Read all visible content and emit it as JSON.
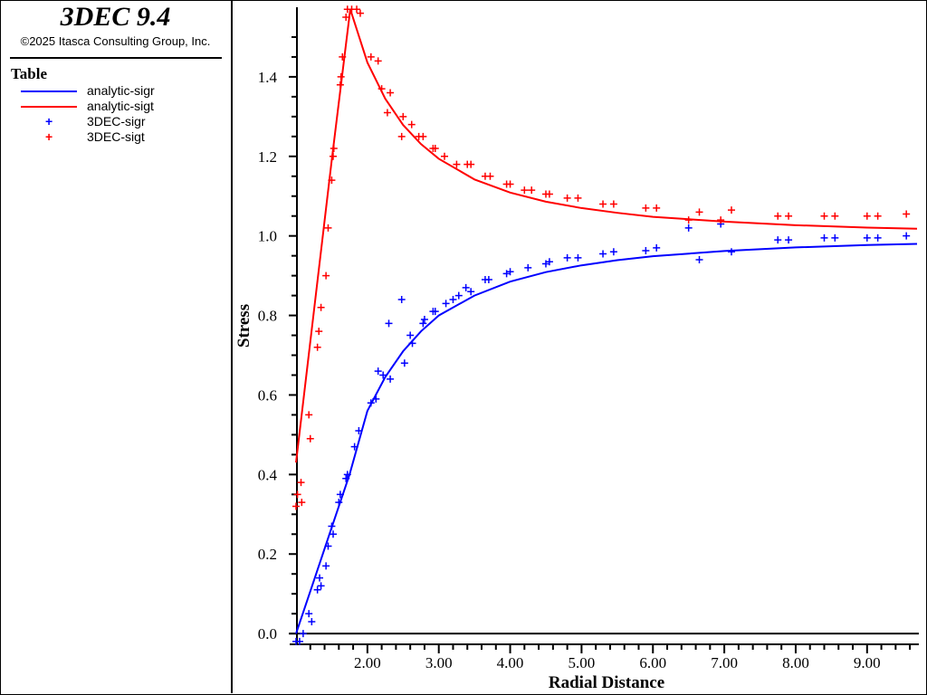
{
  "header": {
    "title": "3DEC 9.4",
    "copyright": "©2025 Itasca Consulting Group, Inc."
  },
  "legend": {
    "title": "Table",
    "entries": [
      {
        "label": "analytic-sigr",
        "kind": "line",
        "color": "#0000ff"
      },
      {
        "label": "analytic-sigt",
        "kind": "line",
        "color": "#ff0000"
      },
      {
        "label": "3DEC-sigr",
        "kind": "marker",
        "color": "#0000ff"
      },
      {
        "label": "3DEC-sigt",
        "kind": "marker",
        "color": "#ff0000"
      }
    ]
  },
  "chart_data": {
    "type": "line",
    "xlabel": "Radial Distance",
    "ylabel": "Stress",
    "xlim": [
      1.0,
      9.7
    ],
    "ylim": [
      -0.027,
      1.575
    ],
    "xticks": [
      "2.00",
      "3.00",
      "4.00",
      "5.00",
      "6.00",
      "7.00",
      "8.00",
      "9.00"
    ],
    "yticks": [
      "0.0",
      "0.2",
      "0.4",
      "0.6",
      "0.8",
      "1.0",
      "1.2",
      "1.4"
    ],
    "grid": false,
    "legend_placement": "left panel",
    "series": [
      {
        "name": "analytic-sigr",
        "style": "line",
        "color": "#0000ff",
        "x": [
          1,
          1.25,
          1.5,
          1.75,
          2,
          2.25,
          2.5,
          2.75,
          3,
          3.5,
          4,
          4.5,
          5,
          5.5,
          6,
          7,
          8,
          9,
          9.7
        ],
        "y": [
          0,
          0.133,
          0.267,
          0.4,
          0.56,
          0.645,
          0.71,
          0.76,
          0.8,
          0.85,
          0.885,
          0.909,
          0.926,
          0.939,
          0.949,
          0.962,
          0.971,
          0.977,
          0.98
        ]
      },
      {
        "name": "analytic-sigt",
        "style": "line",
        "color": "#ff0000",
        "x": [
          1,
          1.25,
          1.5,
          1.76,
          2,
          2.25,
          2.5,
          2.75,
          3,
          3.5,
          4,
          4.5,
          5,
          5.5,
          6,
          7,
          8,
          9,
          9.7
        ],
        "y": [
          0.43,
          0.81,
          1.19,
          1.57,
          1.436,
          1.345,
          1.279,
          1.231,
          1.194,
          1.142,
          1.109,
          1.086,
          1.07,
          1.058,
          1.048,
          1.036,
          1.027,
          1.021,
          1.018
        ]
      },
      {
        "name": "3DEC-sigr",
        "style": "marker",
        "color": "#0000ff",
        "x": [
          1.0,
          1.05,
          1.1,
          1.18,
          1.22,
          1.3,
          1.33,
          1.35,
          1.42,
          1.45,
          1.5,
          1.52,
          1.6,
          1.62,
          1.7,
          1.72,
          1.82,
          1.88,
          2.05,
          2.12,
          2.15,
          2.22,
          2.3,
          2.32,
          2.48,
          2.52,
          2.6,
          2.63,
          2.78,
          2.8,
          2.92,
          2.95,
          3.1,
          3.2,
          3.28,
          3.38,
          3.45,
          3.65,
          3.7,
          3.95,
          4.0,
          4.25,
          4.5,
          4.55,
          4.8,
          4.95,
          5.3,
          5.45,
          5.9,
          6.05,
          6.5,
          6.65,
          6.95,
          7.1,
          7.75,
          7.9,
          8.4,
          8.55,
          9.0,
          9.15,
          9.55
        ],
        "y": [
          -0.02,
          -0.02,
          0.0,
          0.05,
          0.03,
          0.11,
          0.14,
          0.12,
          0.17,
          0.22,
          0.27,
          0.25,
          0.33,
          0.35,
          0.39,
          0.4,
          0.47,
          0.51,
          0.58,
          0.59,
          0.66,
          0.65,
          0.78,
          0.64,
          0.84,
          0.68,
          0.75,
          0.73,
          0.78,
          0.79,
          0.81,
          0.81,
          0.83,
          0.84,
          0.85,
          0.87,
          0.86,
          0.89,
          0.89,
          0.905,
          0.91,
          0.92,
          0.93,
          0.935,
          0.945,
          0.945,
          0.955,
          0.96,
          0.963,
          0.97,
          1.02,
          0.94,
          1.03,
          0.96,
          0.99,
          0.99,
          0.995,
          0.995,
          0.995,
          0.995,
          1.0
        ]
      },
      {
        "name": "3DEC-sigt",
        "style": "marker",
        "color": "#ff0000",
        "x": [
          1.0,
          1.02,
          1.07,
          1.08,
          1.18,
          1.2,
          1.3,
          1.32,
          1.35,
          1.42,
          1.45,
          1.5,
          1.52,
          1.53,
          1.62,
          1.63,
          1.65,
          1.7,
          1.72,
          1.78,
          1.85,
          1.9,
          2.05,
          2.15,
          2.2,
          2.28,
          2.32,
          2.48,
          2.5,
          2.62,
          2.72,
          2.78,
          2.92,
          2.95,
          3.08,
          3.25,
          3.4,
          3.45,
          3.65,
          3.72,
          3.95,
          4.0,
          4.2,
          4.3,
          4.5,
          4.55,
          4.8,
          4.95,
          5.3,
          5.45,
          5.9,
          6.05,
          6.5,
          6.65,
          6.95,
          7.1,
          7.75,
          7.9,
          8.4,
          8.55,
          9.0,
          9.15,
          9.55
        ],
        "y": [
          0.32,
          0.35,
          0.38,
          0.33,
          0.55,
          0.49,
          0.72,
          0.76,
          0.82,
          0.9,
          1.02,
          1.14,
          1.2,
          1.22,
          1.38,
          1.4,
          1.45,
          1.55,
          1.57,
          1.57,
          1.57,
          1.56,
          1.45,
          1.44,
          1.37,
          1.31,
          1.36,
          1.25,
          1.3,
          1.28,
          1.25,
          1.25,
          1.22,
          1.22,
          1.2,
          1.18,
          1.18,
          1.18,
          1.15,
          1.15,
          1.13,
          1.13,
          1.115,
          1.115,
          1.105,
          1.105,
          1.095,
          1.095,
          1.08,
          1.08,
          1.07,
          1.07,
          1.04,
          1.06,
          1.04,
          1.065,
          1.05,
          1.05,
          1.05,
          1.05,
          1.05,
          1.05,
          1.055
        ]
      }
    ]
  }
}
